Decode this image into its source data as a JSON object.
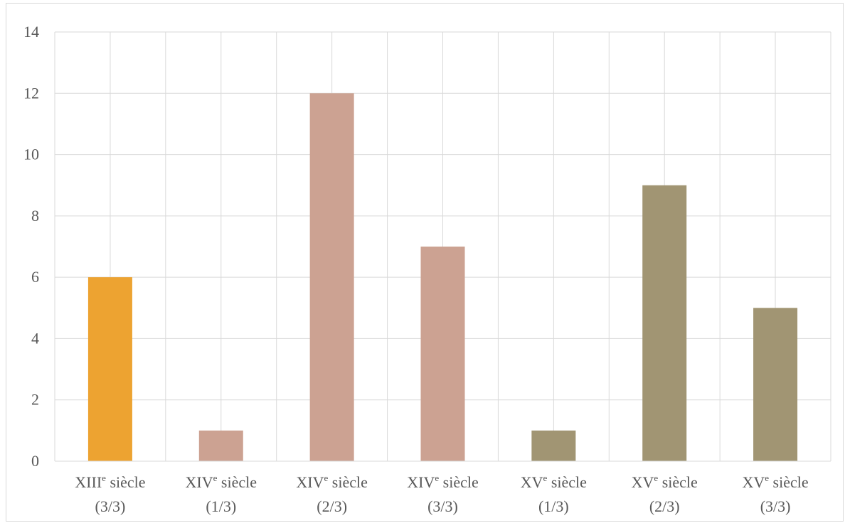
{
  "chart_data": {
    "type": "bar",
    "title": "",
    "xlabel": "",
    "ylabel": "",
    "ylim": [
      0,
      14
    ],
    "yticks": [
      "0",
      "2",
      "4",
      "6",
      "8",
      "10",
      "12",
      "14"
    ],
    "grid": {
      "horizontal": true,
      "vertical": true
    },
    "legend": "none",
    "categories": [
      {
        "century": "XIII",
        "sup": "e",
        "word": "siècle",
        "part": "(3/3)"
      },
      {
        "century": "XIV",
        "sup": "e",
        "word": "siècle",
        "part": "(1/3)"
      },
      {
        "century": "XIV",
        "sup": "e",
        "word": "siècle",
        "part": "(2/3)"
      },
      {
        "century": "XIV",
        "sup": "e",
        "word": "siècle",
        "part": "(3/3)"
      },
      {
        "century": "XV",
        "sup": "e",
        "word": "siècle",
        "part": "(1/3)"
      },
      {
        "century": "XV",
        "sup": "e",
        "word": "siècle",
        "part": "(2/3)"
      },
      {
        "century": "XV",
        "sup": "e",
        "word": "siècle",
        "part": "(3/3)"
      }
    ],
    "values": [
      6,
      1,
      12,
      7,
      1,
      9,
      5
    ],
    "colors": [
      "#EDA331",
      "#CCA292",
      "#CCA292",
      "#CCA292",
      "#A19573",
      "#A19573",
      "#A19573"
    ]
  }
}
